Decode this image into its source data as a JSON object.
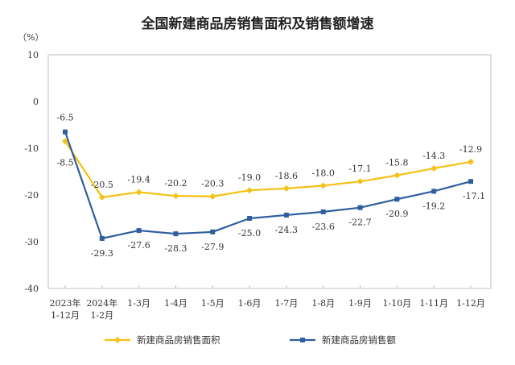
{
  "chart_data": {
    "type": "line",
    "title": "全国新建商品房销售面积及销售额增速",
    "ylabel": "（%）",
    "ylim": [
      -40,
      10
    ],
    "yticks": [
      10,
      0,
      -10,
      -20,
      -30,
      -40
    ],
    "grid": false,
    "legend_position": "bottom",
    "categories": [
      [
        "2023年",
        "1-12月"
      ],
      [
        "2024年",
        "1-2月"
      ],
      [
        "1-3月"
      ],
      [
        "1-4月"
      ],
      [
        "1-5月"
      ],
      [
        "1-6月"
      ],
      [
        "1-7月"
      ],
      [
        "1-8月"
      ],
      [
        "1-9月"
      ],
      [
        "1-10月"
      ],
      [
        "1-11月"
      ],
      [
        "1-12月"
      ]
    ],
    "series": [
      {
        "name": "新建商品房销售面积",
        "color": "#F5C116",
        "values": [
          -8.5,
          -20.5,
          -19.4,
          -20.2,
          -20.3,
          -19.0,
          -18.6,
          -18.0,
          -17.1,
          -15.8,
          -14.3,
          -12.9
        ],
        "labels": [
          "-8.5",
          "-20.5",
          "-19.4",
          "-20.2",
          "-20.3",
          "-19.0",
          "-18.6",
          "-18.0",
          "-17.1",
          "-15.8",
          "-14.3",
          "-12.9"
        ]
      },
      {
        "name": "新建商品房销售额",
        "color": "#2E5E9E",
        "values": [
          -6.5,
          -29.3,
          -27.6,
          -28.3,
          -27.9,
          -25.0,
          -24.3,
          -23.6,
          -22.7,
          -20.9,
          -19.2,
          -17.1
        ],
        "labels": [
          "-6.5",
          "-29.3",
          "-27.6",
          "-28.3",
          "-27.9",
          "-25.0",
          "-24.3",
          "-23.6",
          "-22.7",
          "-20.9",
          "-19.2",
          "-17.1"
        ]
      }
    ]
  }
}
